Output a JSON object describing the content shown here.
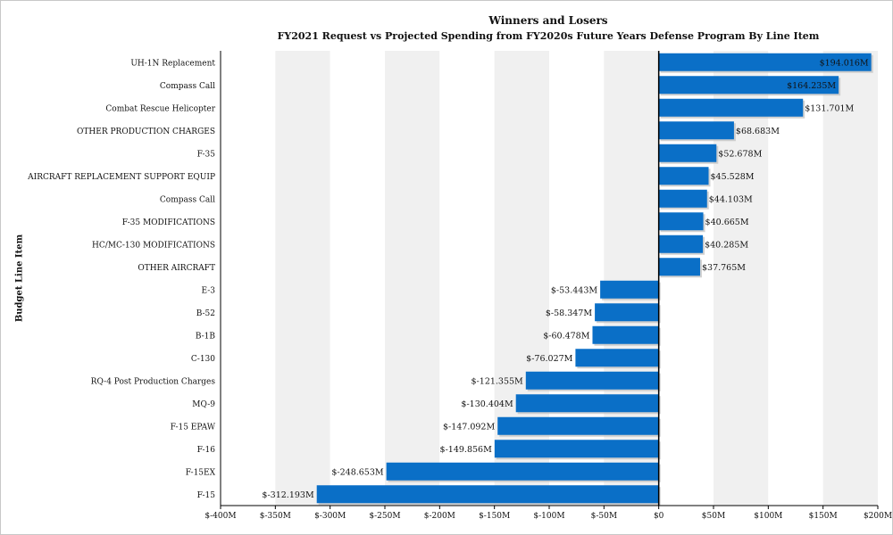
{
  "chart_data": {
    "type": "bar",
    "orientation": "horizontal",
    "title": "Winners and Losers",
    "subtitle": "FY2021 Request vs Projected Spending from FY2020s Future Years Defense Program By Line Item",
    "ylabel": "Budget Line Item",
    "xlabel": "",
    "xlim": [
      -400,
      200
    ],
    "xticks": [
      -400,
      -350,
      -300,
      -250,
      -200,
      -150,
      -100,
      -50,
      0,
      50,
      100,
      150,
      200
    ],
    "xtick_labels": [
      "$-400M",
      "$-350M",
      "$-300M",
      "$-250M",
      "$-200M",
      "$-150M",
      "$-100M",
      "$-50M",
      "$0",
      "$50M",
      "$100M",
      "$150M",
      "$200M"
    ],
    "categories": [
      "UH-1N Replacement",
      "Compass Call",
      "Combat Rescue Helicopter",
      "OTHER PRODUCTION CHARGES",
      "F-35",
      "AIRCRAFT REPLACEMENT SUPPORT EQUIP",
      "Compass Call",
      "F-35 MODIFICATIONS",
      "HC/MC-130 MODIFICATIONS",
      "OTHER AIRCRAFT",
      "E-3",
      "B-52",
      "B-1B",
      "C-130",
      "RQ-4 Post Production Charges",
      "MQ-9",
      "F-15 EPAW",
      "F-16",
      "F-15EX",
      "F-15"
    ],
    "values": [
      194.016,
      164.235,
      131.701,
      68.683,
      52.678,
      45.528,
      44.103,
      40.665,
      40.285,
      37.765,
      -53.443,
      -58.347,
      -60.478,
      -76.027,
      -121.355,
      -130.404,
      -147.092,
      -149.856,
      -248.653,
      -312.193
    ],
    "value_labels": [
      "$194.016M",
      "$164.235M",
      "$131.701M",
      "$68.683M",
      "$52.678M",
      "$45.528M",
      "$44.103M",
      "$40.665M",
      "$40.285M",
      "$37.765M",
      "$-53.443M",
      "$-58.347M",
      "$-60.478M",
      "$-76.027M",
      "$-121.355M",
      "$-130.404M",
      "$-147.092M",
      "$-149.856M",
      "$-248.653M",
      "$-312.193M"
    ],
    "bar_color": "#0a6fc7",
    "band_colors": [
      "#ffffff",
      "#f0f0f0"
    ],
    "grid": "alternating bands"
  }
}
